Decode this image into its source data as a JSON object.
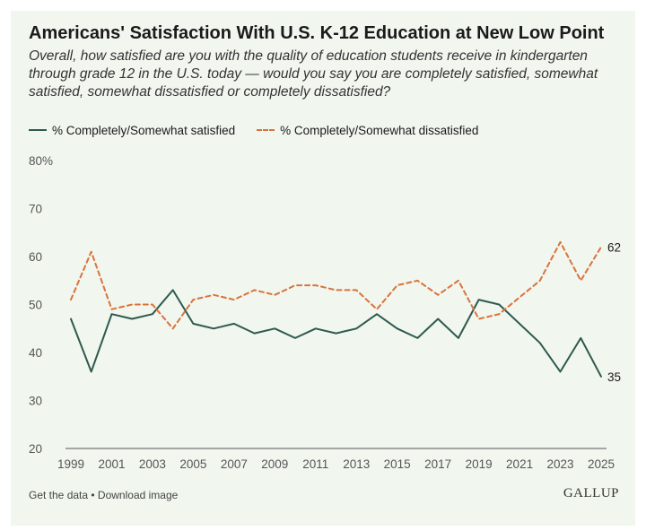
{
  "header": {
    "title": "Americans' Satisfaction With U.S. K-12 Education at New Low Point",
    "subtitle": "Overall, how satisfied are you with the quality of education students receive in kindergarten through grade 12 in the U.S. today — would you say you are completely satisfied, somewhat satisfied, somewhat dissatisfied or completely dissatisfied?"
  },
  "footer": {
    "get_data": "Get the data",
    "separator": " • ",
    "download": "Download image",
    "brand": "GALLUP"
  },
  "chart_data": {
    "type": "line",
    "title": "Americans' Satisfaction With U.S. K-12 Education at New Low Point",
    "xlabel": "",
    "ylabel": "",
    "ylim": [
      20,
      80
    ],
    "y_ticks": [
      20,
      30,
      40,
      50,
      60,
      70,
      80
    ],
    "y_tick_labels": [
      "20",
      "30",
      "40",
      "50",
      "60",
      "70",
      "80%"
    ],
    "x_ticks": [
      1999,
      2001,
      2003,
      2005,
      2007,
      2009,
      2011,
      2013,
      2015,
      2017,
      2019,
      2021,
      2023,
      2025
    ],
    "grid": false,
    "legend_position": "top-left",
    "x": [
      1999,
      2000,
      2001,
      2002,
      2003,
      2004,
      2005,
      2006,
      2007,
      2008,
      2009,
      2010,
      2011,
      2012,
      2013,
      2014,
      2015,
      2016,
      2017,
      2018,
      2019,
      2020,
      2022,
      2023,
      2024,
      2025
    ],
    "series": [
      {
        "name": "% Completely/Somewhat satisfied",
        "color": "#2e5a4e",
        "style": "solid",
        "values": [
          47,
          36,
          48,
          47,
          48,
          53,
          46,
          45,
          46,
          44,
          45,
          43,
          45,
          44,
          45,
          48,
          45,
          43,
          47,
          43,
          51,
          50,
          42,
          36,
          43,
          35
        ],
        "end_label": "35"
      },
      {
        "name": "% Completely/Somewhat dissatisfied",
        "color": "#d9733a",
        "style": "dashed",
        "values": [
          51,
          61,
          49,
          50,
          50,
          45,
          51,
          52,
          51,
          53,
          52,
          54,
          54,
          53,
          53,
          49,
          54,
          55,
          52,
          55,
          47,
          48,
          55,
          63,
          55,
          62
        ],
        "end_label": "62"
      }
    ]
  }
}
